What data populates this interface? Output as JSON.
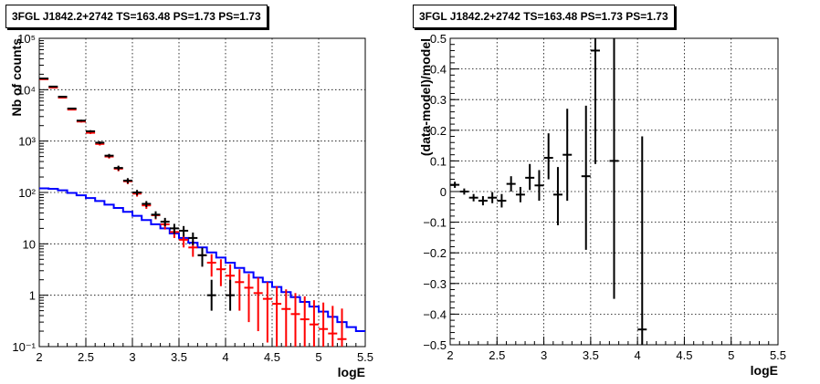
{
  "chart_data": [
    {
      "type": "line",
      "title": "3FGL J1842.2+2742 TS=163.48 PS=1.73 PS=1.73",
      "xlabel": "logE",
      "ylabel": "Nb of counts",
      "xlim": [
        2,
        5.5
      ],
      "ylim": [
        0.1,
        100000
      ],
      "yscale": "log",
      "grid": true,
      "x_ticks": [
        "2",
        "2.5",
        "3",
        "3.5",
        "4",
        "4.5",
        "5",
        "5.5"
      ],
      "y_ticks": [
        "10⁻¹",
        "1",
        "10",
        "10²",
        "10³",
        "10⁴",
        "10⁵"
      ],
      "bin_edges": [
        2.0,
        2.1,
        2.2,
        2.3,
        2.4,
        2.5,
        2.6,
        2.7,
        2.8,
        2.9,
        3.0,
        3.1,
        3.2,
        3.3,
        3.4,
        3.5,
        3.6,
        3.7,
        3.8,
        3.9,
        4.0,
        4.1,
        4.2,
        4.3,
        4.4,
        4.5,
        4.6,
        4.7,
        4.8,
        4.9,
        5.0,
        5.1,
        5.2,
        5.3,
        5.4,
        5.5
      ],
      "series": [
        {
          "style": "step",
          "color": "#0000ff",
          "values": [
            120,
            118,
            110,
            98,
            88,
            78,
            68,
            58,
            50,
            42,
            35,
            29,
            24,
            20,
            16,
            13,
            10.5,
            8.5,
            6.8,
            5.4,
            4.3,
            3.4,
            2.8,
            2.2,
            1.8,
            1.45,
            1.15,
            0.92,
            0.74,
            0.6,
            0.48,
            0.38,
            0.3,
            0.24,
            0.2
          ]
        },
        {
          "style": "errorbar",
          "color": "#000000",
          "points": [
            {
              "x": 2.05,
              "y": 16500,
              "lo": 16250,
              "hi": 16750
            },
            {
              "x": 2.15,
              "y": 11500,
              "lo": 11290,
              "hi": 11710
            },
            {
              "x": 2.25,
              "y": 7300,
              "lo": 7130,
              "hi": 7470
            },
            {
              "x": 2.35,
              "y": 4300,
              "lo": 4170,
              "hi": 4430
            },
            {
              "x": 2.45,
              "y": 2500,
              "lo": 2400,
              "hi": 2600
            },
            {
              "x": 2.55,
              "y": 1550,
              "lo": 1470,
              "hi": 1630
            },
            {
              "x": 2.65,
              "y": 930,
              "lo": 870,
              "hi": 990
            },
            {
              "x": 2.75,
              "y": 520,
              "lo": 477,
              "hi": 563
            },
            {
              "x": 2.85,
              "y": 300,
              "lo": 268,
              "hi": 332
            },
            {
              "x": 2.95,
              "y": 170,
              "lo": 150,
              "hi": 190
            },
            {
              "x": 3.05,
              "y": 100,
              "lo": 88,
              "hi": 112
            },
            {
              "x": 3.15,
              "y": 60,
              "lo": 52,
              "hi": 68
            },
            {
              "x": 3.25,
              "y": 37,
              "lo": 31,
              "hi": 43
            },
            {
              "x": 3.35,
              "y": 27,
              "lo": 22,
              "hi": 32
            },
            {
              "x": 3.45,
              "y": 20,
              "lo": 15.5,
              "hi": 24.5
            },
            {
              "x": 3.55,
              "y": 18,
              "lo": 13.8,
              "hi": 22.2
            },
            {
              "x": 3.65,
              "y": 13,
              "lo": 9.4,
              "hi": 16.6
            },
            {
              "x": 3.75,
              "y": 6,
              "lo": 3.6,
              "hi": 8.4
            },
            {
              "x": 3.85,
              "y": 1.0,
              "lo": 0.5,
              "hi": 2.0
            },
            {
              "x": 4.05,
              "y": 1.0,
              "lo": 0.5,
              "hi": 2.0
            }
          ]
        },
        {
          "style": "errorbar",
          "color": "#ff0000",
          "points": [
            {
              "x": 2.05,
              "y": 16000,
              "lo": 15750,
              "hi": 16250
            },
            {
              "x": 2.15,
              "y": 11000,
              "lo": 10800,
              "hi": 11200
            },
            {
              "x": 2.25,
              "y": 7000,
              "lo": 6830,
              "hi": 7170
            },
            {
              "x": 2.35,
              "y": 4100,
              "lo": 3970,
              "hi": 4230
            },
            {
              "x": 2.45,
              "y": 2400,
              "lo": 2300,
              "hi": 2500
            },
            {
              "x": 2.55,
              "y": 1450,
              "lo": 1370,
              "hi": 1530
            },
            {
              "x": 2.65,
              "y": 880,
              "lo": 820,
              "hi": 940
            },
            {
              "x": 2.75,
              "y": 500,
              "lo": 457,
              "hi": 543
            },
            {
              "x": 2.85,
              "y": 290,
              "lo": 258,
              "hi": 322
            },
            {
              "x": 2.95,
              "y": 165,
              "lo": 145,
              "hi": 185
            },
            {
              "x": 3.05,
              "y": 95,
              "lo": 83,
              "hi": 107
            },
            {
              "x": 3.15,
              "y": 56,
              "lo": 48,
              "hi": 64
            },
            {
              "x": 3.25,
              "y": 36,
              "lo": 30,
              "hi": 42
            },
            {
              "x": 3.35,
              "y": 24,
              "lo": 19,
              "hi": 29
            },
            {
              "x": 3.45,
              "y": 17,
              "lo": 13,
              "hi": 21
            },
            {
              "x": 3.55,
              "y": 12,
              "lo": 8.5,
              "hi": 15.5
            },
            {
              "x": 3.65,
              "y": 8.5,
              "lo": 5.6,
              "hi": 11.4
            },
            {
              "x": 3.75,
              "y": 6,
              "lo": 3.6,
              "hi": 8.4
            },
            {
              "x": 3.85,
              "y": 4.3,
              "lo": 2.3,
              "hi": 6.3
            },
            {
              "x": 3.95,
              "y": 3.2,
              "lo": 1.5,
              "hi": 5.0
            },
            {
              "x": 4.05,
              "y": 2.4,
              "lo": 0.9,
              "hi": 4.0
            },
            {
              "x": 4.15,
              "y": 1.8,
              "lo": 0.5,
              "hi": 3.2
            },
            {
              "x": 4.25,
              "y": 1.4,
              "lo": 0.3,
              "hi": 2.6
            },
            {
              "x": 4.35,
              "y": 1.1,
              "lo": 0.2,
              "hi": 2.2
            },
            {
              "x": 4.45,
              "y": 0.85,
              "lo": 0.12,
              "hi": 1.8
            },
            {
              "x": 4.55,
              "y": 0.68,
              "lo": 0.1,
              "hi": 1.5
            },
            {
              "x": 4.65,
              "y": 0.54,
              "lo": 0.1,
              "hi": 1.3
            },
            {
              "x": 4.75,
              "y": 0.43,
              "lo": 0.1,
              "hi": 1.1
            },
            {
              "x": 4.85,
              "y": 0.34,
              "lo": 0.1,
              "hi": 0.95
            },
            {
              "x": 4.95,
              "y": 0.27,
              "lo": 0.1,
              "hi": 0.8
            },
            {
              "x": 5.05,
              "y": 0.22,
              "lo": 0.1,
              "hi": 0.72
            },
            {
              "x": 5.15,
              "y": 0.18,
              "lo": 0.1,
              "hi": 0.62
            },
            {
              "x": 5.25,
              "y": 0.14,
              "lo": 0.1,
              "hi": 0.55
            }
          ]
        }
      ]
    },
    {
      "type": "scatter",
      "title": "3FGL J1842.2+2742 TS=163.48 PS=1.73 PS=1.73",
      "xlabel": "logE",
      "ylabel": "(data-model)/model",
      "xlim": [
        2,
        5.5
      ],
      "ylim": [
        -0.5,
        0.5
      ],
      "grid": true,
      "x_ticks": [
        "2",
        "2.5",
        "3",
        "3.5",
        "4",
        "4.5",
        "5",
        "5.5"
      ],
      "y_ticks": [
        "−0.5",
        "−0.4",
        "−0.3",
        "−0.2",
        "−0.1",
        "0",
        "0.1",
        "0.2",
        "0.3",
        "0.4",
        "0.5"
      ],
      "series": [
        {
          "style": "errorbar",
          "color": "#000000",
          "points": [
            {
              "x": 2.05,
              "y": 0.022,
              "lo": 0.012,
              "hi": 0.032
            },
            {
              "x": 2.15,
              "y": 0.0,
              "lo": -0.01,
              "hi": 0.01
            },
            {
              "x": 2.25,
              "y": -0.02,
              "lo": -0.032,
              "hi": -0.008
            },
            {
              "x": 2.35,
              "y": -0.03,
              "lo": -0.045,
              "hi": -0.015
            },
            {
              "x": 2.45,
              "y": -0.02,
              "lo": -0.038,
              "hi": -0.002
            },
            {
              "x": 2.55,
              "y": -0.03,
              "lo": -0.052,
              "hi": -0.008
            },
            {
              "x": 2.65,
              "y": 0.025,
              "lo": 0.0,
              "hi": 0.05
            },
            {
              "x": 2.75,
              "y": -0.01,
              "lo": -0.035,
              "hi": 0.015
            },
            {
              "x": 2.85,
              "y": 0.045,
              "lo": 0.005,
              "hi": 0.09
            },
            {
              "x": 2.95,
              "y": 0.02,
              "lo": -0.03,
              "hi": 0.07
            },
            {
              "x": 3.05,
              "y": 0.11,
              "lo": 0.04,
              "hi": 0.19
            },
            {
              "x": 3.15,
              "y": -0.01,
              "lo": -0.11,
              "hi": 0.08
            },
            {
              "x": 3.25,
              "y": 0.12,
              "lo": -0.03,
              "hi": 0.27
            },
            {
              "x": 3.45,
              "y": 0.05,
              "lo": -0.19,
              "hi": 0.28
            },
            {
              "x": 3.55,
              "y": 0.46,
              "lo": 0.09,
              "hi": 0.5
            },
            {
              "x": 3.75,
              "y": 0.1,
              "lo": -0.35,
              "hi": 0.5
            },
            {
              "x": 4.05,
              "y": -0.45,
              "lo": -0.5,
              "hi": 0.18
            }
          ]
        }
      ]
    }
  ]
}
